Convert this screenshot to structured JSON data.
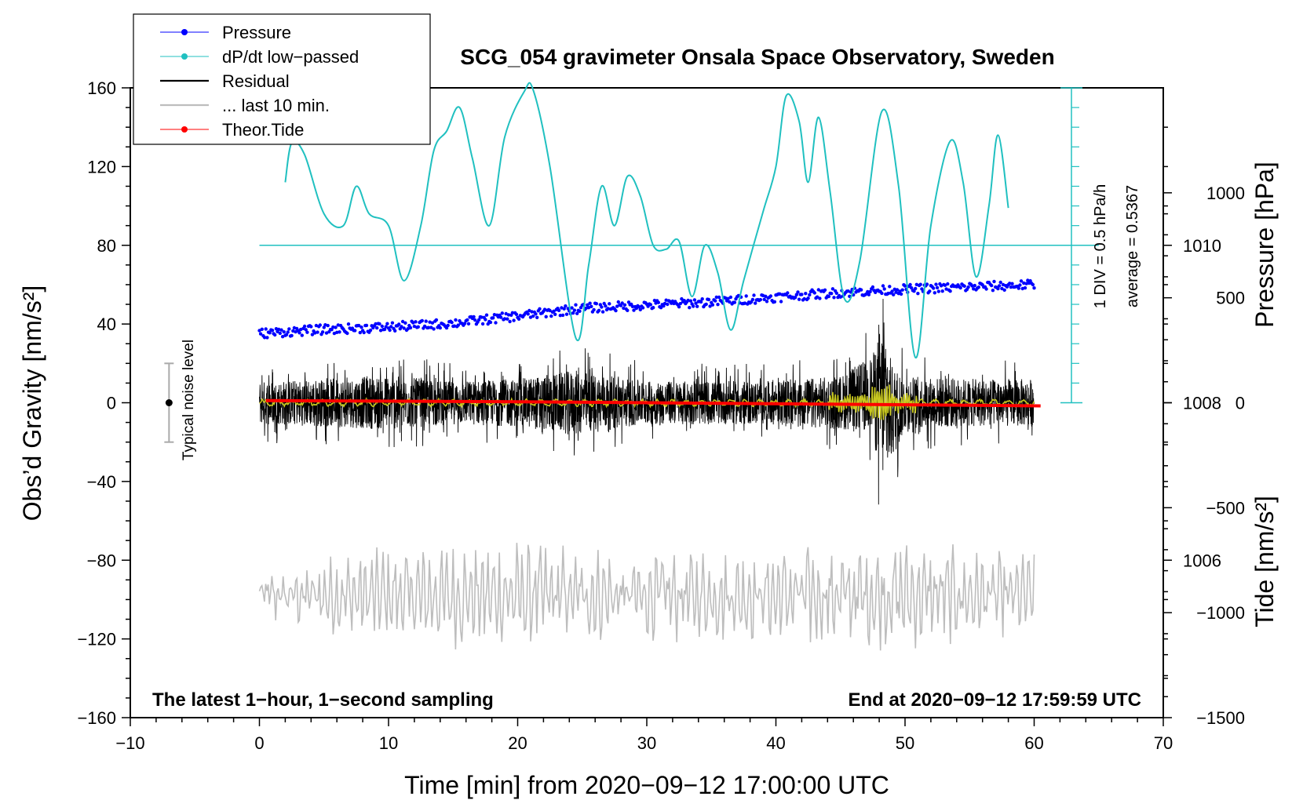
{
  "chart_data": {
    "type": "line",
    "title": "SCG_054 gravimeter Onsala Space Observatory, Sweden",
    "xlabel": "Time [min] from 2020−09−12 17:00:00 UTC",
    "ylabel_main": "Obs’d Gravity [nm/s²]",
    "ylabel_pressure": "Pressure [hPa]",
    "ylabel_tide": "Tide [nm/s²]",
    "xlim": [
      -10,
      70
    ],
    "ylim": [
      -160,
      160
    ],
    "x_ticks": [
      -10,
      0,
      10,
      20,
      30,
      40,
      50,
      60,
      70
    ],
    "x_tick_labels": [
      "−10",
      "0",
      "10",
      "20",
      "30",
      "40",
      "50",
      "60",
      "70"
    ],
    "y_ticks": [
      160,
      120,
      80,
      40,
      0,
      -40,
      -80,
      -120,
      -160
    ],
    "y_tick_labels": [
      "160",
      "120",
      "80",
      "40",
      "0",
      "−40",
      "−80",
      "−120",
      "−160"
    ],
    "pressure_axis": {
      "range_hpa": [
        1004,
        1012
      ],
      "ticks": [
        1010,
        1008,
        1006
      ],
      "tick_labels": [
        "1010",
        "1008",
        "1006"
      ]
    },
    "tide_axis": {
      "range": [
        -1500,
        1500
      ],
      "ticks": [
        1000,
        500,
        0,
        -500,
        -1000,
        -1500
      ],
      "tick_labels": [
        "1000",
        "500",
        "0",
        "−500",
        "−1000",
        "−1500"
      ]
    },
    "dpdt_scale": {
      "div_label": "1 DIV = 0.5 hPa/h",
      "average_label": "average = 0.5367",
      "baseline_y": 80,
      "range_y": [
        0,
        160
      ]
    },
    "legend": [
      {
        "label": "Pressure",
        "color": "#0000ff",
        "marker": true
      },
      {
        "label": "dP/dt low−passed",
        "color": "#20c0c0",
        "marker": true
      },
      {
        "label": "Residual",
        "color": "#000000",
        "marker": false
      },
      {
        "label": "... last 10 min.",
        "color": "#bdbdbd",
        "marker": false
      },
      {
        "label": "Theor.Tide",
        "color": "#ff0000",
        "marker": true
      }
    ],
    "noise_level": {
      "label": "Typical noise level",
      "x": -7,
      "center": 0,
      "half_range": 20
    },
    "annotations": {
      "bottom_left": "The latest 1−hour, 1−second sampling",
      "bottom_right": "End at 2020−09−12 17:59:59 UTC"
    },
    "series": [
      {
        "name": "Pressure",
        "color": "#0000ff",
        "unit": "hPa",
        "x": [
          0,
          5,
          10,
          15,
          20,
          25,
          30,
          35,
          40,
          45,
          50,
          55,
          60
        ],
        "values": [
          1008.88,
          1008.93,
          1008.96,
          1009.01,
          1009.1,
          1009.2,
          1009.24,
          1009.28,
          1009.34,
          1009.4,
          1009.44,
          1009.47,
          1009.5
        ]
      },
      {
        "name": "dP/dt low−passed",
        "color": "#20c0c0",
        "unit": "plotted in gravity-axis units (baseline 80)",
        "x": [
          2,
          2.5,
          3.5,
          5,
          6.5,
          7.5,
          8.5,
          10,
          11.2,
          12.5,
          13.5,
          14.5,
          15.5,
          16.5,
          17.8,
          19,
          20.5,
          21.2,
          22.5,
          24.5,
          25.5,
          26.5,
          27.5,
          28.5,
          29.5,
          30.5,
          31.5,
          32.5,
          33.5,
          34.5,
          35.5,
          36.5,
          37.5,
          39,
          40,
          40.8,
          41.8,
          42.5,
          43.3,
          44.2,
          45.3,
          46.5,
          48.2,
          49.5,
          50.8,
          52,
          53.5,
          54.5,
          55.5,
          56.5,
          57.2,
          58
        ],
        "values": [
          112,
          132,
          126,
          96,
          90,
          110,
          96,
          90,
          62,
          90,
          128,
          138,
          150,
          124,
          90,
          135,
          158,
          159,
          120,
          33,
          70,
          110,
          90,
          115,
          105,
          80,
          78,
          82,
          54,
          80,
          66,
          37,
          62,
          97,
          120,
          156,
          143,
          112,
          145,
          107,
          53,
          72,
          148,
          110,
          23,
          90,
          133,
          112,
          64,
          100,
          136,
          99
        ]
      },
      {
        "name": "Residual",
        "color": "#000000",
        "x": [
          0,
          5,
          10,
          15,
          20,
          24.5,
          30,
          35,
          40,
          45,
          47.5,
          48.2,
          49,
          50,
          55,
          60
        ],
        "values": [
          0,
          0,
          0,
          0,
          0,
          0,
          0,
          0,
          0,
          0,
          5,
          0,
          -5,
          0,
          0,
          0
        ],
        "envelope": [
          20,
          22,
          25,
          20,
          22,
          30,
          20,
          20,
          20,
          25,
          35,
          75,
          45,
          25,
          22,
          22
        ]
      },
      {
        "name": "... last 10 min.",
        "color": "#bdbdbd",
        "x": [
          0,
          10,
          20,
          30,
          40,
          50,
          60
        ],
        "values": [
          -98,
          -98,
          -98,
          -98,
          -98,
          -98,
          -98
        ],
        "envelope": [
          12,
          22,
          24,
          20,
          22,
          24,
          18
        ]
      },
      {
        "name": "Theor.Tide",
        "color": "#ff0000",
        "unit": "nm/s² (tide axis)",
        "x": [
          0.5,
          20,
          40,
          60.5
        ],
        "values": [
          10,
          5,
          -5,
          -15
        ]
      }
    ]
  }
}
